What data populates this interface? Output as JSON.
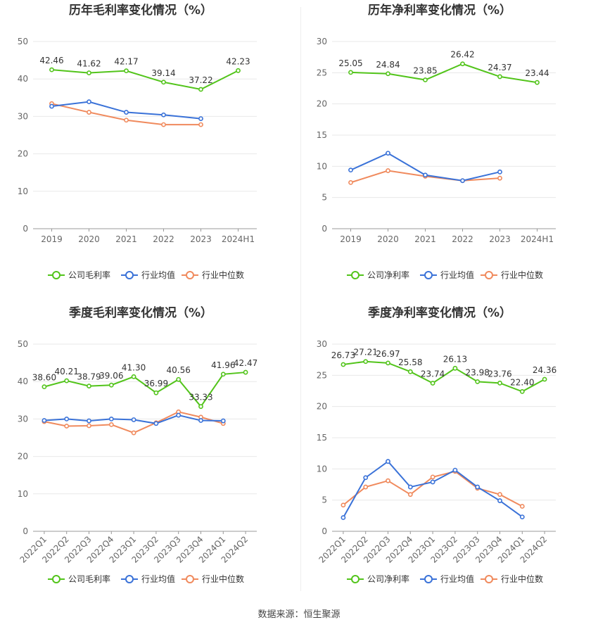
{
  "source": "数据来源：恒生聚源",
  "colors": {
    "company": "#52c41a",
    "avg": "#3a72d8",
    "median": "#f08a5d"
  },
  "chart_data": [
    {
      "type": "line",
      "title": "历年毛利率变化情况（%）",
      "categories": [
        "2019",
        "2020",
        "2021",
        "2022",
        "2023",
        "2024H1"
      ],
      "ylim": [
        0,
        50
      ],
      "yticks": [
        0,
        10,
        20,
        30,
        40,
        50
      ],
      "rotate_x": false,
      "series": [
        {
          "name": "公司毛利率",
          "values": [
            42.46,
            41.62,
            42.17,
            39.14,
            37.22,
            42.23
          ],
          "labels": [
            "42.46",
            "41.62",
            "42.17",
            "39.14",
            "37.22",
            "42.23"
          ]
        },
        {
          "name": "行业均值",
          "values": [
            32.7,
            33.9,
            31.1,
            30.4,
            29.4,
            null
          ]
        },
        {
          "name": "行业中位数",
          "values": [
            33.4,
            31.1,
            29.0,
            27.8,
            27.8,
            null
          ]
        }
      ]
    },
    {
      "type": "line",
      "title": "历年净利率变化情况（%）",
      "categories": [
        "2019",
        "2020",
        "2021",
        "2022",
        "2023",
        "2024H1"
      ],
      "ylim": [
        0,
        30
      ],
      "yticks": [
        0,
        5,
        10,
        15,
        20,
        25,
        30
      ],
      "rotate_x": false,
      "series": [
        {
          "name": "公司净利率",
          "values": [
            25.05,
            24.84,
            23.85,
            26.42,
            24.37,
            23.44
          ],
          "labels": [
            "25.05",
            "24.84",
            "23.85",
            "26.42",
            "24.37",
            "23.44"
          ]
        },
        {
          "name": "行业均值",
          "values": [
            9.4,
            12.1,
            8.6,
            7.7,
            9.1,
            null
          ]
        },
        {
          "name": "行业中位数",
          "values": [
            7.4,
            9.3,
            8.4,
            7.7,
            8.1,
            null
          ]
        }
      ]
    },
    {
      "type": "line",
      "title": "季度毛利率变化情况（%）",
      "categories": [
        "2022Q1",
        "2022Q2",
        "2022Q3",
        "2022Q4",
        "2023Q1",
        "2023Q2",
        "2023Q3",
        "2023Q4",
        "2024Q1",
        "2024Q2"
      ],
      "ylim": [
        0,
        50
      ],
      "yticks": [
        0,
        10,
        20,
        30,
        40,
        50
      ],
      "rotate_x": true,
      "series": [
        {
          "name": "公司毛利率",
          "values": [
            38.6,
            40.21,
            38.79,
            39.06,
            41.3,
            36.99,
            40.56,
            33.33,
            41.96,
            42.47
          ],
          "labels": [
            "38.60",
            "40.21",
            "38.79",
            "39.06",
            "41.30",
            "36.99",
            "40.56",
            "33.33",
            "41.96",
            "42.47"
          ]
        },
        {
          "name": "行业均值",
          "values": [
            29.6,
            30.0,
            29.5,
            30.0,
            29.8,
            28.8,
            31.0,
            29.6,
            29.5,
            null
          ]
        },
        {
          "name": "行业中位数",
          "values": [
            29.3,
            28.1,
            28.2,
            28.5,
            26.3,
            29.0,
            31.9,
            30.5,
            28.8,
            null
          ]
        }
      ]
    },
    {
      "type": "line",
      "title": "季度净利率变化情况（%）",
      "categories": [
        "2022Q1",
        "2022Q2",
        "2022Q3",
        "2022Q4",
        "2023Q1",
        "2023Q2",
        "2023Q3",
        "2023Q4",
        "2024Q1",
        "2024Q2"
      ],
      "ylim": [
        0,
        30
      ],
      "yticks": [
        0,
        5,
        10,
        15,
        20,
        25,
        30
      ],
      "rotate_x": true,
      "series": [
        {
          "name": "公司净利率",
          "values": [
            26.73,
            27.21,
            26.97,
            25.58,
            23.74,
            26.13,
            23.98,
            23.76,
            22.4,
            24.36
          ],
          "labels": [
            "26.73",
            "27.21",
            "26.97",
            "25.58",
            "23.74",
            "26.13",
            "23.98",
            "23.76",
            "22.40",
            "24.36"
          ]
        },
        {
          "name": "行业均值",
          "values": [
            2.2,
            8.6,
            11.2,
            7.1,
            7.9,
            9.8,
            7.1,
            4.9,
            2.3,
            null
          ]
        },
        {
          "name": "行业中位数",
          "values": [
            4.2,
            7.1,
            8.1,
            5.9,
            8.7,
            9.6,
            6.9,
            5.9,
            4.0,
            null
          ]
        }
      ]
    }
  ]
}
